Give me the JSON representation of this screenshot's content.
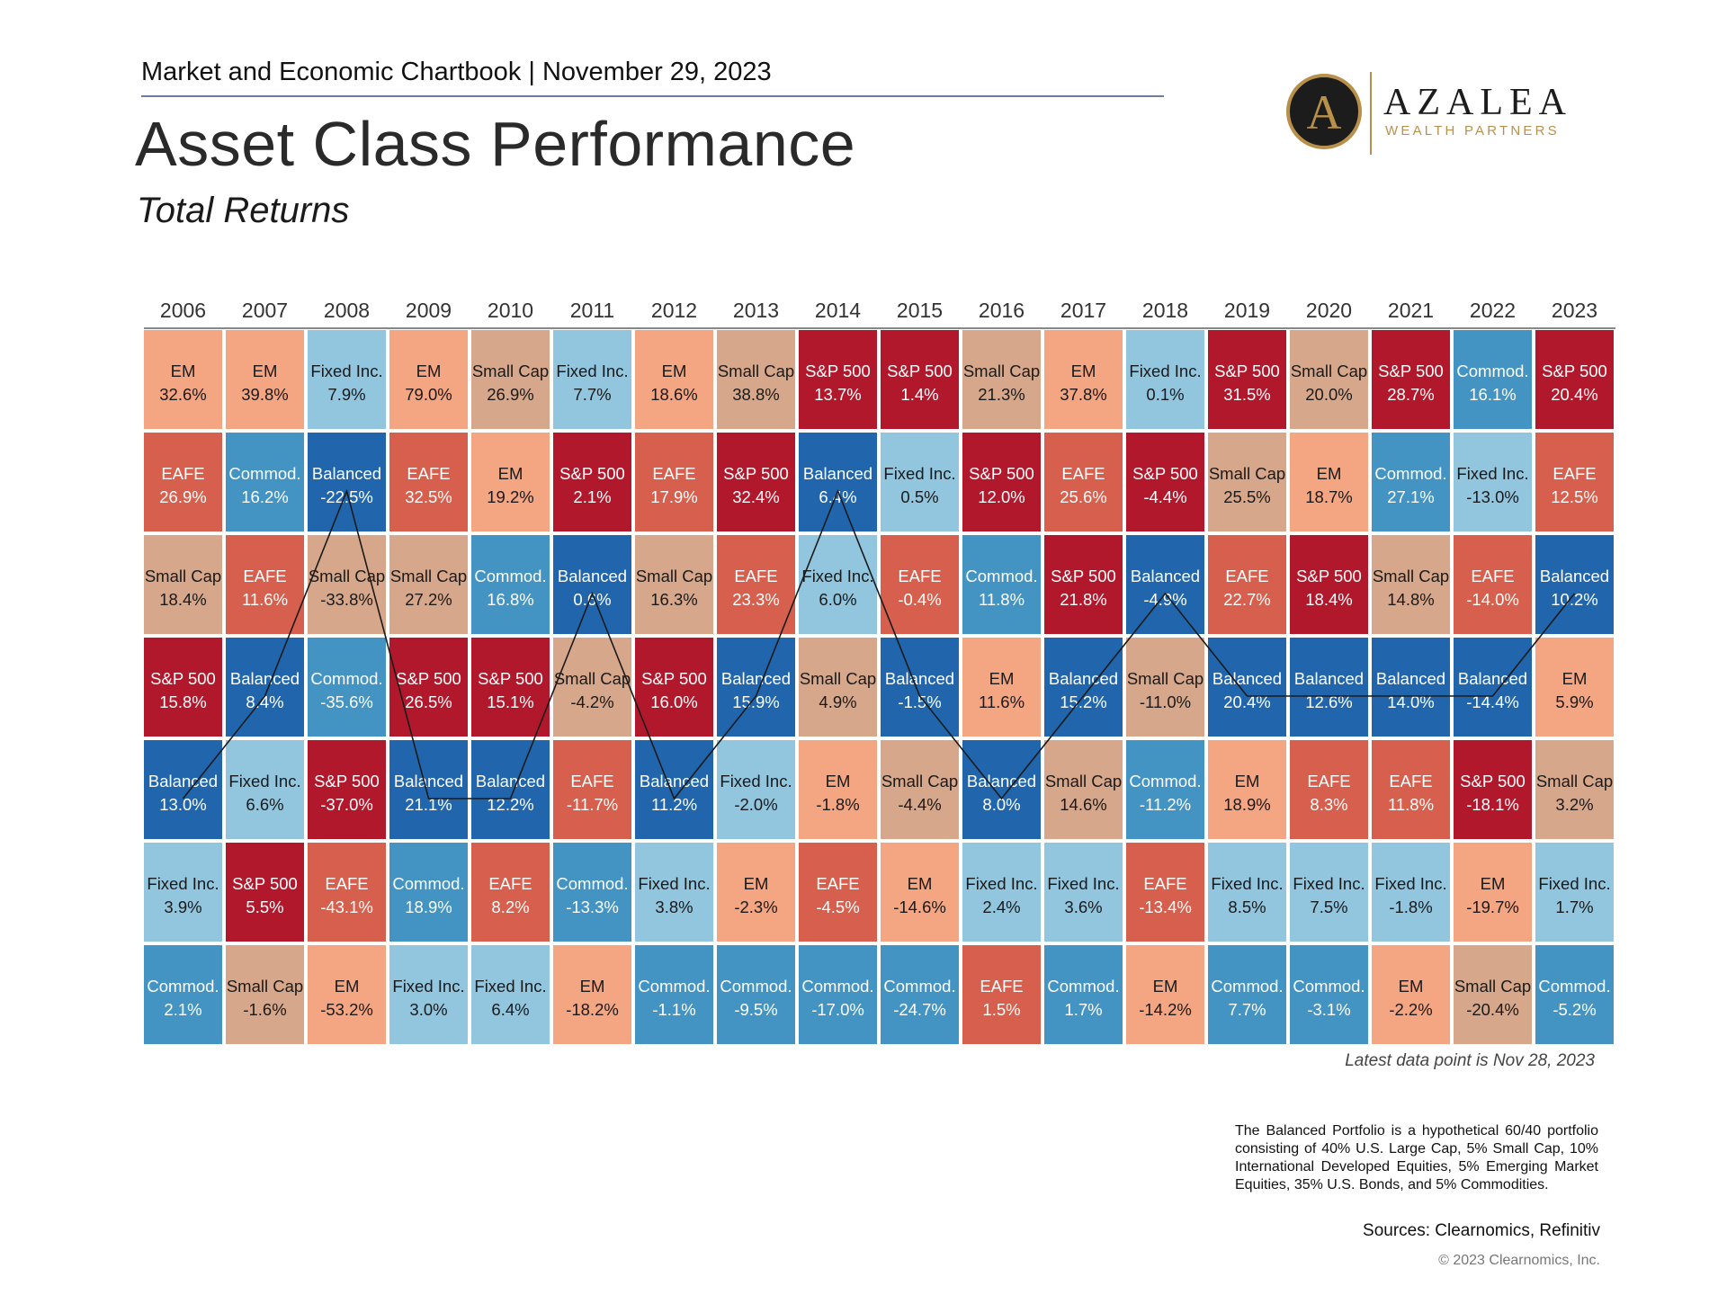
{
  "header": {
    "breadcrumb": "Market and Economic Chartbook | November 29, 2023",
    "title": "Asset Class Performance",
    "subtitle": "Total Returns"
  },
  "logo": {
    "monogram": "A",
    "name": "AZALEA",
    "tagline": "WEALTH PARTNERS",
    "accent_color": "#b8904a",
    "emblem_color": "#1c1c1c"
  },
  "colors": {
    "EM": "#f4a582",
    "EAFE": "#d6604d",
    "S&P 500": "#b2182b",
    "Small Cap": "#d6a78a",
    "Fixed Inc.": "#92c5de",
    "Commod.": "#4393c3",
    "Balanced": "#2166ac"
  },
  "chart_data": {
    "type": "table",
    "title": "Asset Class Performance",
    "subtitle": "Total Returns",
    "years": [
      "2006",
      "2007",
      "2008",
      "2009",
      "2010",
      "2011",
      "2012",
      "2013",
      "2014",
      "2015",
      "2016",
      "2017",
      "2018",
      "2019",
      "2020",
      "2021",
      "2022",
      "2023"
    ],
    "columns": [
      [
        [
          "EM",
          "32.6%"
        ],
        [
          "EAFE",
          "26.9%"
        ],
        [
          "Small Cap",
          "18.4%"
        ],
        [
          "S&P 500",
          "15.8%"
        ],
        [
          "Balanced",
          "13.0%"
        ],
        [
          "Fixed Inc.",
          "3.9%"
        ],
        [
          "Commod.",
          "2.1%"
        ]
      ],
      [
        [
          "EM",
          "39.8%"
        ],
        [
          "Commod.",
          "16.2%"
        ],
        [
          "EAFE",
          "11.6%"
        ],
        [
          "Balanced",
          "8.4%"
        ],
        [
          "Fixed Inc.",
          "6.6%"
        ],
        [
          "S&P 500",
          "5.5%"
        ],
        [
          "Small Cap",
          "-1.6%"
        ]
      ],
      [
        [
          "Fixed Inc.",
          "7.9%"
        ],
        [
          "Balanced",
          "-22.5%"
        ],
        [
          "Small Cap",
          "-33.8%"
        ],
        [
          "Commod.",
          "-35.6%"
        ],
        [
          "S&P 500",
          "-37.0%"
        ],
        [
          "EAFE",
          "-43.1%"
        ],
        [
          "EM",
          "-53.2%"
        ]
      ],
      [
        [
          "EM",
          "79.0%"
        ],
        [
          "EAFE",
          "32.5%"
        ],
        [
          "Small Cap",
          "27.2%"
        ],
        [
          "S&P 500",
          "26.5%"
        ],
        [
          "Balanced",
          "21.1%"
        ],
        [
          "Commod.",
          "18.9%"
        ],
        [
          "Fixed Inc.",
          "3.0%"
        ]
      ],
      [
        [
          "Small Cap",
          "26.9%"
        ],
        [
          "EM",
          "19.2%"
        ],
        [
          "Commod.",
          "16.8%"
        ],
        [
          "S&P 500",
          "15.1%"
        ],
        [
          "Balanced",
          "12.2%"
        ],
        [
          "EAFE",
          "8.2%"
        ],
        [
          "Fixed Inc.",
          "6.4%"
        ]
      ],
      [
        [
          "Fixed Inc.",
          "7.7%"
        ],
        [
          "S&P 500",
          "2.1%"
        ],
        [
          "Balanced",
          "0.6%"
        ],
        [
          "Small Cap",
          "-4.2%"
        ],
        [
          "EAFE",
          "-11.7%"
        ],
        [
          "Commod.",
          "-13.3%"
        ],
        [
          "EM",
          "-18.2%"
        ]
      ],
      [
        [
          "EM",
          "18.6%"
        ],
        [
          "EAFE",
          "17.9%"
        ],
        [
          "Small Cap",
          "16.3%"
        ],
        [
          "S&P 500",
          "16.0%"
        ],
        [
          "Balanced",
          "11.2%"
        ],
        [
          "Fixed Inc.",
          "3.8%"
        ],
        [
          "Commod.",
          "-1.1%"
        ]
      ],
      [
        [
          "Small Cap",
          "38.8%"
        ],
        [
          "S&P 500",
          "32.4%"
        ],
        [
          "EAFE",
          "23.3%"
        ],
        [
          "Balanced",
          "15.9%"
        ],
        [
          "Fixed Inc.",
          "-2.0%"
        ],
        [
          "EM",
          "-2.3%"
        ],
        [
          "Commod.",
          "-9.5%"
        ]
      ],
      [
        [
          "S&P 500",
          "13.7%"
        ],
        [
          "Balanced",
          "6.4%"
        ],
        [
          "Fixed Inc.",
          "6.0%"
        ],
        [
          "Small Cap",
          "4.9%"
        ],
        [
          "EM",
          "-1.8%"
        ],
        [
          "EAFE",
          "-4.5%"
        ],
        [
          "Commod.",
          "-17.0%"
        ]
      ],
      [
        [
          "S&P 500",
          "1.4%"
        ],
        [
          "Fixed Inc.",
          "0.5%"
        ],
        [
          "EAFE",
          "-0.4%"
        ],
        [
          "Balanced",
          "-1.5%"
        ],
        [
          "Small Cap",
          "-4.4%"
        ],
        [
          "EM",
          "-14.6%"
        ],
        [
          "Commod.",
          "-24.7%"
        ]
      ],
      [
        [
          "Small Cap",
          "21.3%"
        ],
        [
          "S&P 500",
          "12.0%"
        ],
        [
          "Commod.",
          "11.8%"
        ],
        [
          "EM",
          "11.6%"
        ],
        [
          "Balanced",
          "8.0%"
        ],
        [
          "Fixed Inc.",
          "2.4%"
        ],
        [
          "EAFE",
          "1.5%"
        ]
      ],
      [
        [
          "EM",
          "37.8%"
        ],
        [
          "EAFE",
          "25.6%"
        ],
        [
          "S&P 500",
          "21.8%"
        ],
        [
          "Balanced",
          "15.2%"
        ],
        [
          "Small Cap",
          "14.6%"
        ],
        [
          "Fixed Inc.",
          "3.6%"
        ],
        [
          "Commod.",
          "1.7%"
        ]
      ],
      [
        [
          "Fixed Inc.",
          "0.1%"
        ],
        [
          "S&P 500",
          "-4.4%"
        ],
        [
          "Balanced",
          "-4.9%"
        ],
        [
          "Small Cap",
          "-11.0%"
        ],
        [
          "Commod.",
          "-11.2%"
        ],
        [
          "EAFE",
          "-13.4%"
        ],
        [
          "EM",
          "-14.2%"
        ]
      ],
      [
        [
          "S&P 500",
          "31.5%"
        ],
        [
          "Small Cap",
          "25.5%"
        ],
        [
          "EAFE",
          "22.7%"
        ],
        [
          "Balanced",
          "20.4%"
        ],
        [
          "EM",
          "18.9%"
        ],
        [
          "Fixed Inc.",
          "8.5%"
        ],
        [
          "Commod.",
          "7.7%"
        ]
      ],
      [
        [
          "Small Cap",
          "20.0%"
        ],
        [
          "EM",
          "18.7%"
        ],
        [
          "S&P 500",
          "18.4%"
        ],
        [
          "Balanced",
          "12.6%"
        ],
        [
          "EAFE",
          "8.3%"
        ],
        [
          "Fixed Inc.",
          "7.5%"
        ],
        [
          "Commod.",
          "-3.1%"
        ]
      ],
      [
        [
          "S&P 500",
          "28.7%"
        ],
        [
          "Commod.",
          "27.1%"
        ],
        [
          "Small Cap",
          "14.8%"
        ],
        [
          "Balanced",
          "14.0%"
        ],
        [
          "EAFE",
          "11.8%"
        ],
        [
          "Fixed Inc.",
          "-1.8%"
        ],
        [
          "EM",
          "-2.2%"
        ]
      ],
      [
        [
          "Commod.",
          "16.1%"
        ],
        [
          "Fixed Inc.",
          "-13.0%"
        ],
        [
          "EAFE",
          "-14.0%"
        ],
        [
          "Balanced",
          "-14.4%"
        ],
        [
          "S&P 500",
          "-18.1%"
        ],
        [
          "EM",
          "-19.7%"
        ],
        [
          "Small Cap",
          "-20.4%"
        ]
      ],
      [
        [
          "S&P 500",
          "20.4%"
        ],
        [
          "EAFE",
          "12.5%"
        ],
        [
          "Balanced",
          "10.2%"
        ],
        [
          "EM",
          "5.9%"
        ],
        [
          "Small Cap",
          "3.2%"
        ],
        [
          "Fixed Inc.",
          "1.7%"
        ],
        [
          "Commod.",
          "-5.2%"
        ]
      ]
    ],
    "highlight_series": "Balanced"
  },
  "footer": {
    "latest_note": "Latest data point is Nov 28, 2023",
    "disclaimer": "The Balanced Portfolio is a hypothetical 60/40 portfolio consisting of 40% U.S. Large Cap, 5% Small Cap, 10% International Developed Equities, 5% Emerging Market Equities, 35% U.S. Bonds, and 5% Commodities.",
    "sources": "Sources: Clearnomics, Refinitiv",
    "copyright": "© 2023 Clearnomics, Inc."
  }
}
